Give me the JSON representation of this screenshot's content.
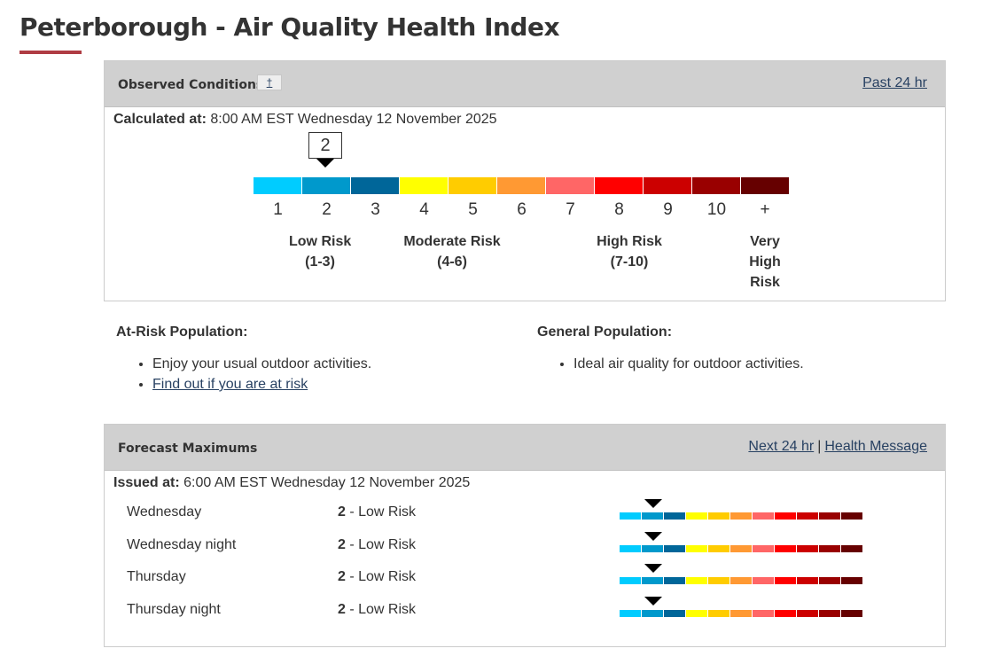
{
  "page": {
    "title": "Peterborough - Air Quality Health Index"
  },
  "observed": {
    "heading": "Observed Conditions",
    "footnote": "†",
    "past_link": "Past 24 hr",
    "calculated_label": "Calculated at:",
    "calculated_value": "8:00 AM EST Wednesday 12 November 2025",
    "current_value": 2,
    "current_value_text": "2",
    "scale": [
      {
        "label": "1",
        "color": "#00ccff"
      },
      {
        "label": "2",
        "color": "#0099cc"
      },
      {
        "label": "3",
        "color": "#006699"
      },
      {
        "label": "4",
        "color": "#ffff00"
      },
      {
        "label": "5",
        "color": "#ffcc00"
      },
      {
        "label": "6",
        "color": "#ff9933"
      },
      {
        "label": "7",
        "color": "#ff6666"
      },
      {
        "label": "8",
        "color": "#ff0000"
      },
      {
        "label": "9",
        "color": "#cc0000"
      },
      {
        "label": "10",
        "color": "#990000"
      },
      {
        "label": "+",
        "color": "#660000"
      }
    ],
    "risk_levels": {
      "low": {
        "name": "Low Risk",
        "range": "(1-3)"
      },
      "moderate": {
        "name": "Moderate Risk",
        "range": "(4-6)"
      },
      "high": {
        "name": "High Risk",
        "range": "(7-10)"
      },
      "very_high": {
        "line1": "Very",
        "line2": "High",
        "line3": "Risk"
      }
    }
  },
  "advice": {
    "at_risk": {
      "heading": "At-Risk Population:",
      "items": [
        "Enjoy your usual outdoor activities."
      ],
      "link": "Find out if you are at risk"
    },
    "general": {
      "heading": "General Population:",
      "items": [
        "Ideal air quality for outdoor activities."
      ]
    }
  },
  "forecast": {
    "heading": "Forecast Maximums",
    "next_link": "Next 24 hr",
    "separator": "|",
    "health_link": "Health Message",
    "issued_label": "Issued at:",
    "issued_value": "6:00 AM EST Wednesday 12 November 2025",
    "rows": [
      {
        "period": "Wednesday",
        "value": "2",
        "risk": " - Low Risk",
        "level": 2
      },
      {
        "period": "Wednesday night",
        "value": "2",
        "risk": " - Low Risk",
        "level": 2
      },
      {
        "period": "Thursday",
        "value": "2",
        "risk": " - Low Risk",
        "level": 2
      },
      {
        "period": "Thursday night",
        "value": "2",
        "risk": " - Low Risk",
        "level": 2
      }
    ]
  }
}
